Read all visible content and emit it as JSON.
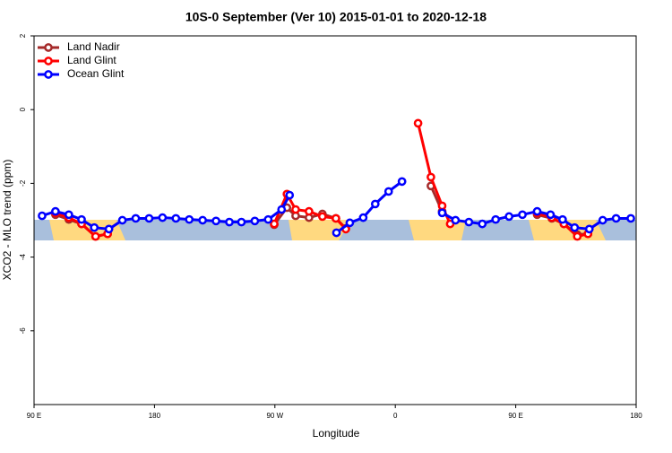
{
  "chart_data": {
    "type": "line",
    "title": "10S-0 September (Ver 10)   2015-01-01 to 2020-12-18",
    "xlabel": "Longitude",
    "ylabel": "XCO2 - MLO trend (ppm)",
    "xlim": [
      90,
      540
    ],
    "ylim": [
      -8,
      2
    ],
    "xticks": [
      {
        "value": 90,
        "label": "90 E"
      },
      {
        "value": 180,
        "label": "180"
      },
      {
        "value": 270,
        "label": "90 W"
      },
      {
        "value": 360,
        "label": "0"
      },
      {
        "value": 450,
        "label": "90 E"
      },
      {
        "value": 540,
        "label": "180"
      }
    ],
    "yticks": [
      2,
      0,
      -2,
      -4,
      -6
    ],
    "legend": "top-left",
    "series": [
      {
        "name": "Land Nadir",
        "color": "#a52a2a",
        "x": [
          106,
          116,
          125.5,
          136,
          145,
          null,
          269.5,
          279,
          285.5,
          295.5,
          305.5,
          315.6,
          323,
          null,
          386.6,
          395,
          null,
          466,
          477,
          486,
          496,
          504
        ],
        "values": [
          -2.85,
          -2.98,
          -3.1,
          -3.44,
          -3.37,
          null,
          -3.12,
          -2.66,
          -2.88,
          -2.93,
          -2.83,
          -2.95,
          -3.22,
          null,
          -2.07,
          -2.76,
          null,
          -2.85,
          -2.95,
          -3.1,
          -3.39,
          -3.37
        ]
      },
      {
        "name": "Land Glint",
        "color": "#ff0000",
        "x": [
          106,
          116,
          125.5,
          136,
          145,
          null,
          269.5,
          279,
          285.5,
          295.5,
          305.5,
          315.6,
          323,
          null,
          377,
          386.6,
          395,
          401,
          null,
          466,
          477,
          486,
          496,
          504
        ],
        "values": [
          -2.8,
          -2.93,
          -3.1,
          -3.44,
          -3.37,
          null,
          -3.1,
          -2.29,
          -2.71,
          -2.76,
          -2.9,
          -2.95,
          -3.24,
          null,
          -0.37,
          -1.83,
          -2.61,
          -3.1,
          null,
          -2.8,
          -2.93,
          -3.1,
          -3.44,
          -3.37
        ]
      },
      {
        "name": "Ocean Glint",
        "color": "#0000ff",
        "x": [
          96,
          106,
          116,
          125.5,
          135,
          146,
          156,
          166,
          176,
          186,
          196,
          206,
          216,
          226,
          236,
          245,
          255,
          265,
          275,
          281,
          null,
          316,
          326,
          336,
          345,
          355,
          365,
          null,
          395,
          405,
          415,
          425,
          435,
          445,
          455,
          466,
          476,
          485,
          494,
          505,
          515,
          525,
          536
        ],
        "values": [
          -2.88,
          -2.76,
          -2.85,
          -2.98,
          -3.2,
          -3.24,
          -3.0,
          -2.95,
          -2.95,
          -2.93,
          -2.95,
          -2.98,
          -3.0,
          -3.02,
          -3.05,
          -3.05,
          -3.02,
          -2.98,
          -2.71,
          -2.32,
          null,
          -3.34,
          -3.07,
          -2.93,
          -2.56,
          -2.22,
          -1.95,
          null,
          -2.8,
          -3.0,
          -3.05,
          -3.1,
          -2.98,
          -2.9,
          -2.85,
          -2.76,
          -2.85,
          -2.98,
          -3.2,
          -3.24,
          -3.0,
          -2.95,
          -2.95
        ]
      }
    ]
  }
}
